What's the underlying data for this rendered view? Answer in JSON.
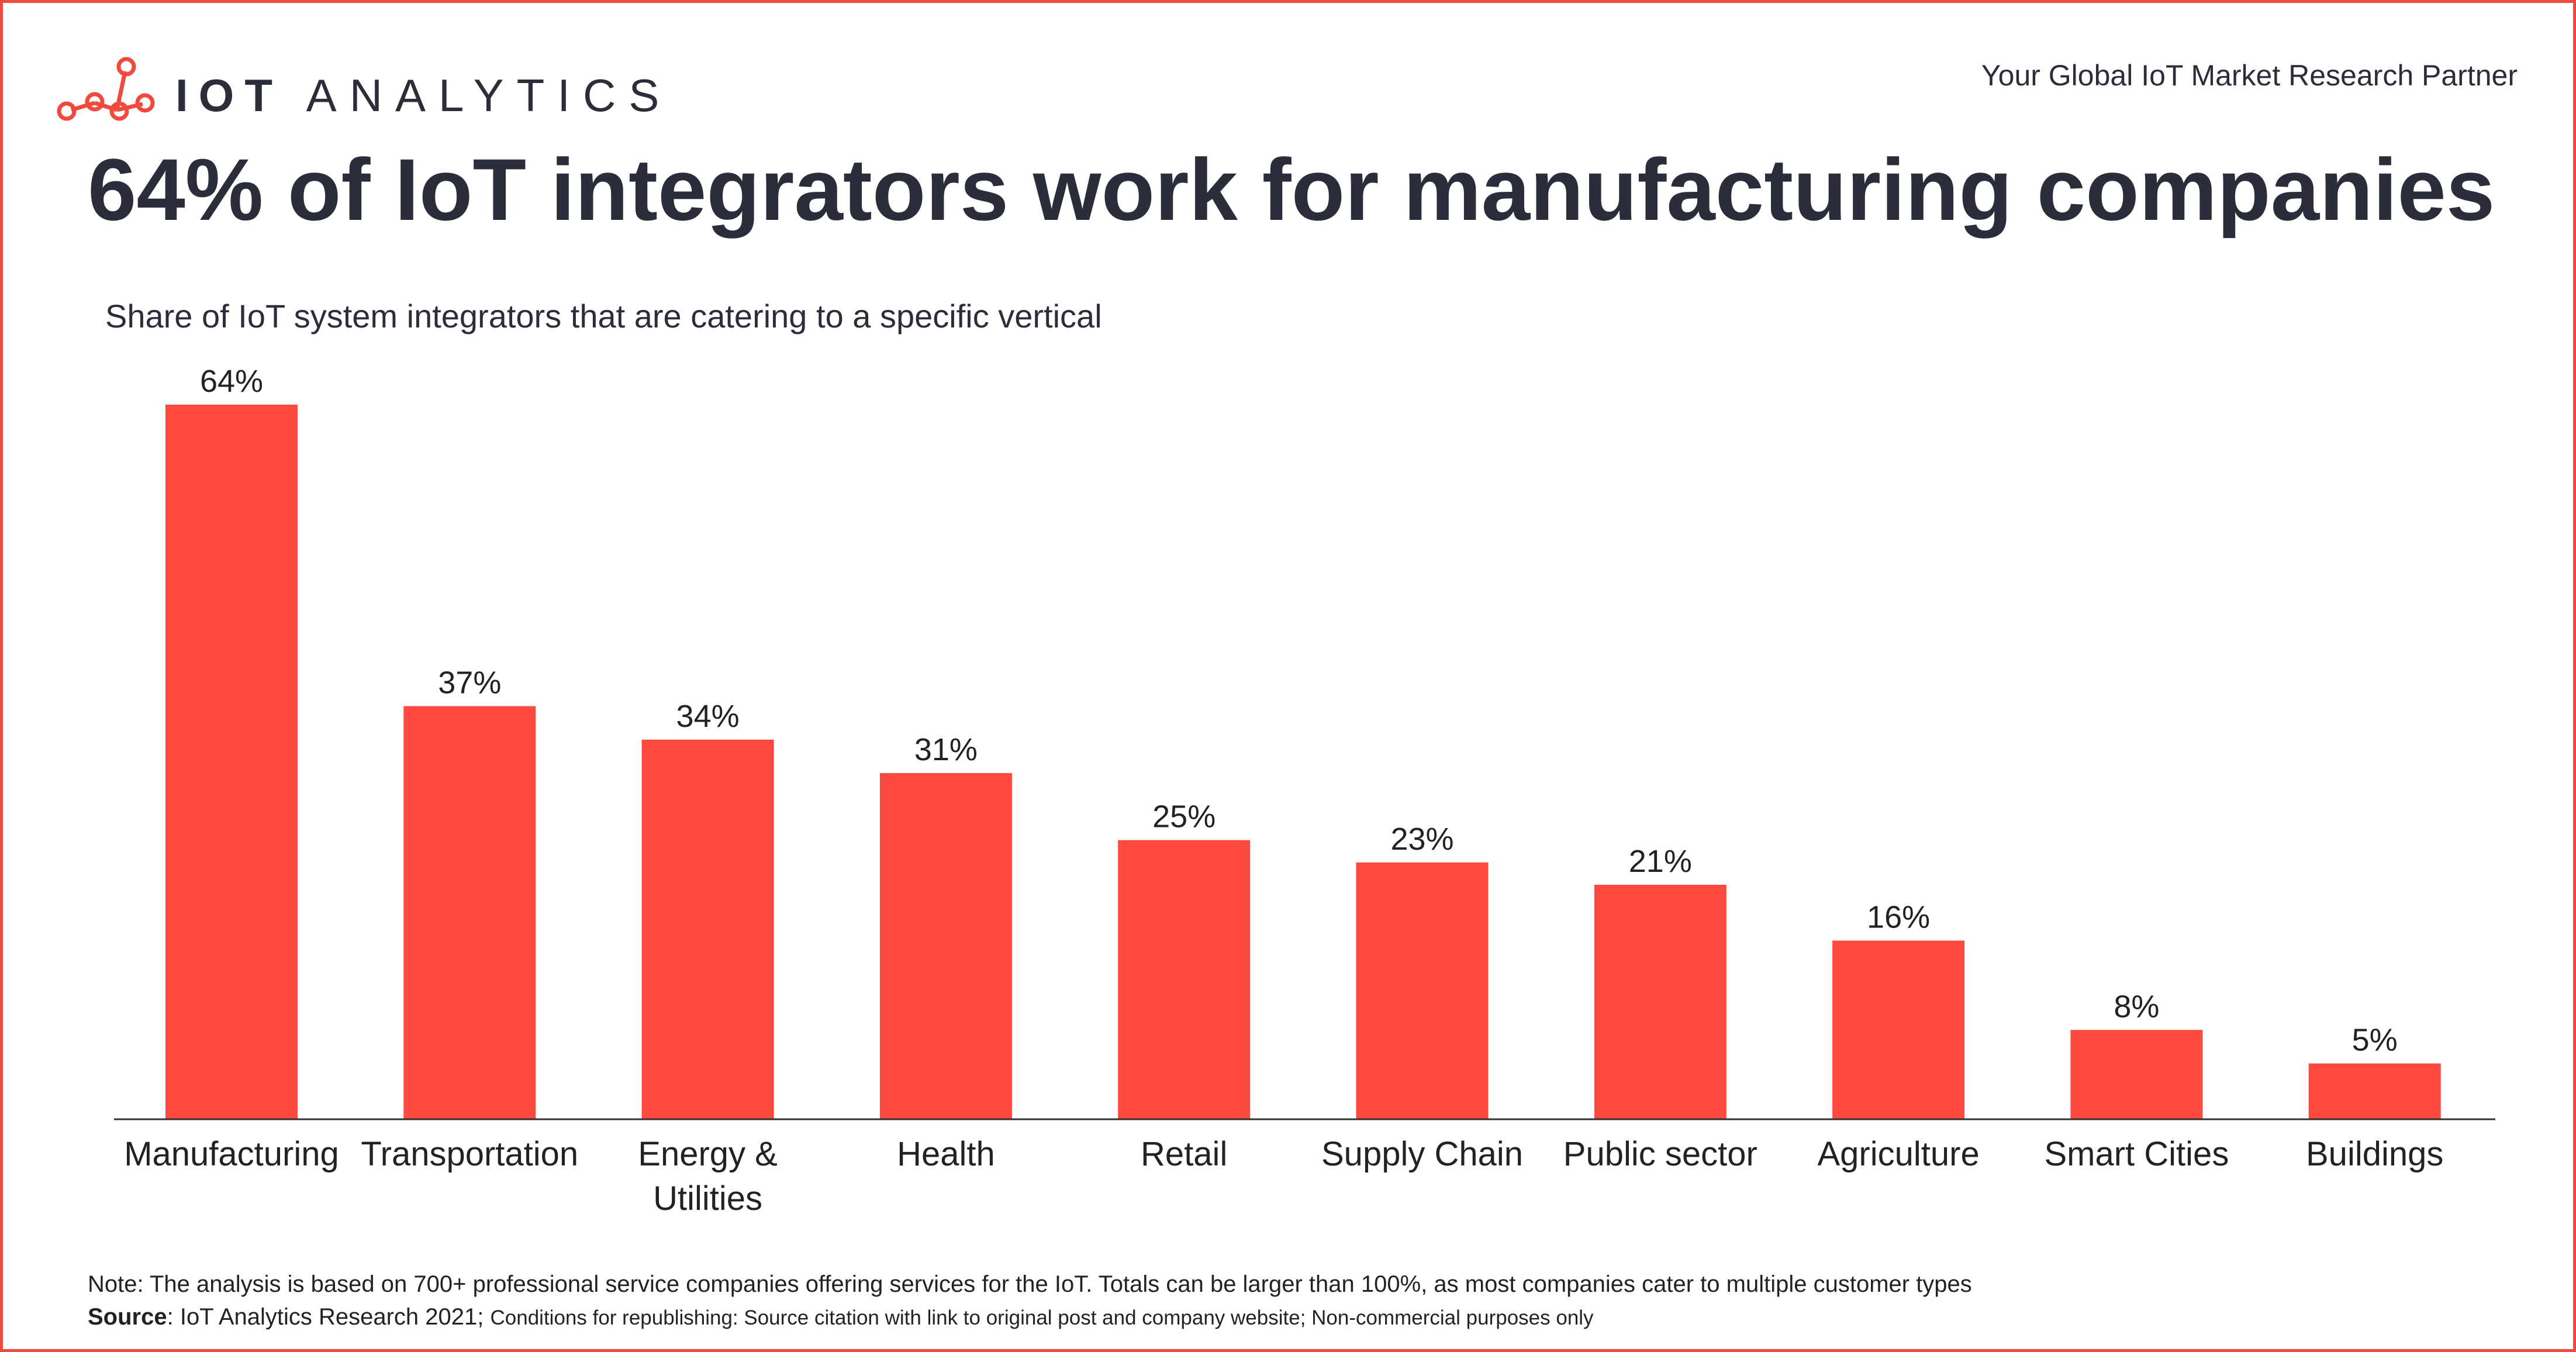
{
  "brand": {
    "logo_bold": "IOT",
    "logo_light": "ANALYTICS",
    "tagline": "Your Global IoT Market Research Partner",
    "accent": "#f04a3e"
  },
  "header": {
    "title": "64% of IoT integrators work for manufacturing companies",
    "subtitle": "Share of IoT system integrators that are catering to a specific vertical"
  },
  "chart_data": {
    "type": "bar",
    "categories": [
      "Manufacturing",
      "Transportation",
      "Energy & Utilities",
      "Health",
      "Retail",
      "Supply Chain",
      "Public sector",
      "Agriculture",
      "Smart Cities",
      "Buildings"
    ],
    "category_lines": [
      [
        "Manufacturing"
      ],
      [
        "Transportation"
      ],
      [
        "Energy &",
        "Utilities"
      ],
      [
        "Health"
      ],
      [
        "Retail"
      ],
      [
        "Supply Chain"
      ],
      [
        "Public sector"
      ],
      [
        "Agriculture"
      ],
      [
        "Smart Cities"
      ],
      [
        "Buildings"
      ]
    ],
    "values": [
      64,
      37,
      34,
      31,
      25,
      23,
      21,
      16,
      8,
      5
    ],
    "data_labels": [
      "64%",
      "37%",
      "34%",
      "31%",
      "25%",
      "23%",
      "21%",
      "16%",
      "8%",
      "5%"
    ],
    "ylim": [
      0,
      64
    ],
    "grid": false,
    "bar_color": "#fe4a3e"
  },
  "footer": {
    "note": "Note: The analysis is based on 700+ professional service companies offering services for the IoT. Totals can be larger than 100%, as most companies cater to multiple customer types",
    "source_label": "Source",
    "source_text": ": IoT Analytics Research 2021; ",
    "conditions": "Conditions for republishing: Source citation with link to original post and company website; Non-commercial purposes only"
  }
}
